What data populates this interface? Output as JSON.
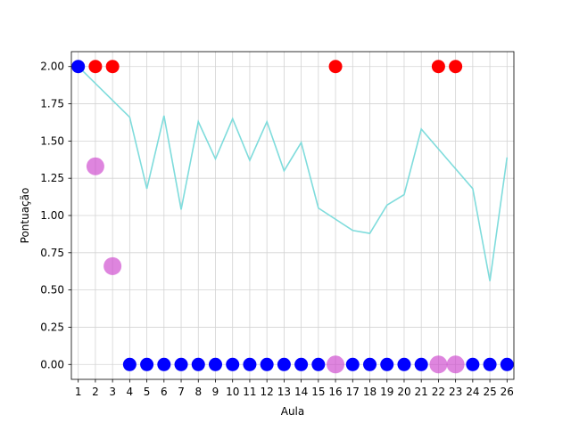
{
  "chart_data": {
    "type": "line",
    "title": "",
    "xlabel": "Aula",
    "ylabel": "Pontuação",
    "xlim": [
      0.6,
      26.4
    ],
    "ylim": [
      -0.1,
      2.1
    ],
    "grid": true,
    "legend": "none",
    "x_ticks": [
      "1",
      "2",
      "3",
      "4",
      "5",
      "6",
      "7",
      "8",
      "9",
      "10",
      "11",
      "12",
      "13",
      "14",
      "15",
      "16",
      "17",
      "18",
      "19",
      "20",
      "21",
      "22",
      "23",
      "24",
      "25",
      "26"
    ],
    "y_ticks": [
      "0.00",
      "0.25",
      "0.50",
      "0.75",
      "1.00",
      "1.25",
      "1.50",
      "1.75",
      "2.00"
    ],
    "colors": {
      "line": "#7fdcdc",
      "blue": "#0000ff",
      "red": "#ff0000",
      "magenta": "#cc44cc",
      "grid": "#d3d3d3",
      "axis": "#000000"
    },
    "series": [
      {
        "type": "line",
        "color": "#7fdcdc",
        "points": [
          {
            "x": 1,
            "y": 2.0
          },
          {
            "x": 4,
            "y": 1.66
          },
          {
            "x": 5,
            "y": 1.18
          },
          {
            "x": 6,
            "y": 1.67
          },
          {
            "x": 7,
            "y": 1.04
          },
          {
            "x": 8,
            "y": 1.63
          },
          {
            "x": 9,
            "y": 1.38
          },
          {
            "x": 10,
            "y": 1.65
          },
          {
            "x": 11,
            "y": 1.37
          },
          {
            "x": 12,
            "y": 1.63
          },
          {
            "x": 13,
            "y": 1.3
          },
          {
            "x": 14,
            "y": 1.49
          },
          {
            "x": 15,
            "y": 1.05
          },
          {
            "x": 17,
            "y": 0.9
          },
          {
            "x": 18,
            "y": 0.88
          },
          {
            "x": 19,
            "y": 1.07
          },
          {
            "x": 20,
            "y": 1.14
          },
          {
            "x": 21,
            "y": 1.58
          },
          {
            "x": 24,
            "y": 1.18
          },
          {
            "x": 25,
            "y": 0.56
          },
          {
            "x": 26,
            "y": 1.39
          }
        ]
      },
      {
        "type": "scatter",
        "color": "#0000ff",
        "opacity": 1,
        "size": "small",
        "points": [
          {
            "x": 1,
            "y": 2.0
          },
          {
            "x": 4,
            "y": 0
          },
          {
            "x": 5,
            "y": 0
          },
          {
            "x": 6,
            "y": 0
          },
          {
            "x": 7,
            "y": 0
          },
          {
            "x": 8,
            "y": 0
          },
          {
            "x": 9,
            "y": 0
          },
          {
            "x": 10,
            "y": 0
          },
          {
            "x": 11,
            "y": 0
          },
          {
            "x": 12,
            "y": 0
          },
          {
            "x": 13,
            "y": 0
          },
          {
            "x": 14,
            "y": 0
          },
          {
            "x": 15,
            "y": 0
          },
          {
            "x": 17,
            "y": 0
          },
          {
            "x": 18,
            "y": 0
          },
          {
            "x": 19,
            "y": 0
          },
          {
            "x": 20,
            "y": 0
          },
          {
            "x": 21,
            "y": 0
          },
          {
            "x": 24,
            "y": 0
          },
          {
            "x": 25,
            "y": 0
          },
          {
            "x": 26,
            "y": 0
          }
        ]
      },
      {
        "type": "scatter",
        "color": "#ff0000",
        "opacity": 1,
        "size": "small",
        "points": [
          {
            "x": 2,
            "y": 2.0
          },
          {
            "x": 3,
            "y": 2.0
          },
          {
            "x": 16,
            "y": 2.0
          },
          {
            "x": 22,
            "y": 2.0
          },
          {
            "x": 23,
            "y": 2.0
          }
        ]
      },
      {
        "type": "scatter",
        "color": "#cc44cc",
        "opacity": 0.65,
        "size": "large",
        "points": [
          {
            "x": 2,
            "y": 1.33
          },
          {
            "x": 3,
            "y": 0.66
          },
          {
            "x": 16,
            "y": 0
          },
          {
            "x": 22,
            "y": 0
          },
          {
            "x": 23,
            "y": 0
          }
        ]
      }
    ]
  }
}
